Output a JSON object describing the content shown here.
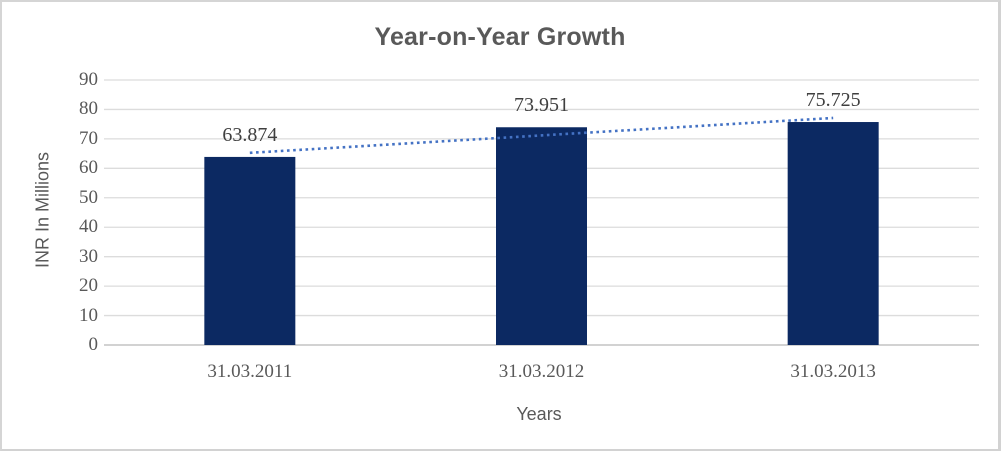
{
  "window": {
    "background": "#ffffff",
    "border_color": "#d5d5d5"
  },
  "chart_data": {
    "type": "bar",
    "title": "Year-on-Year Growth",
    "xlabel": "Years",
    "ylabel": "INR In Millions",
    "categories": [
      "31.03.2011",
      "31.03.2012",
      "31.03.2013"
    ],
    "values": [
      63.874,
      73.951,
      75.725
    ],
    "data_labels": [
      "63.874",
      "73.951",
      "75.725"
    ],
    "yticks": [
      0,
      10,
      20,
      30,
      40,
      50,
      60,
      70,
      80,
      90
    ],
    "ylim": [
      0,
      90
    ],
    "grid": true,
    "legend": "none",
    "trendline": {
      "type": "linear",
      "style": "dotted"
    },
    "colors": {
      "bar": "#0c2962",
      "trendline": "#4472c4",
      "gridline": "#dcdcdc",
      "axis_line": "#d2d2d2",
      "axis_text": "#595959",
      "data_label_text": "#3f3f3f",
      "title_text": "#595959"
    }
  }
}
